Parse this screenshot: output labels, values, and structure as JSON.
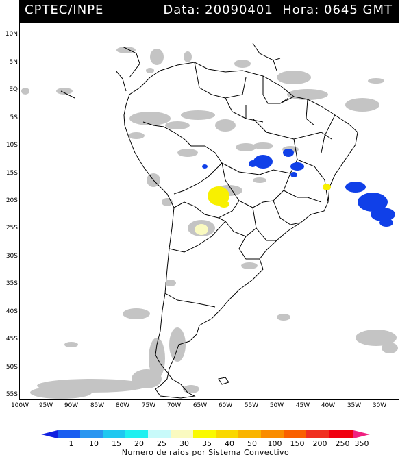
{
  "header": {
    "source": "CPTEC/INPE",
    "info": "Data: 20090401  Hora: 0645 GMT"
  },
  "map": {
    "lat_labels": [
      "10N",
      "5N",
      "EQ",
      "5S",
      "10S",
      "15S",
      "20S",
      "25S",
      "30S",
      "35S",
      "40S",
      "45S",
      "50S",
      "55S"
    ],
    "lon_labels": [
      "100W",
      "95W",
      "90W",
      "85W",
      "80W",
      "75W",
      "70W",
      "65W",
      "60W",
      "55W",
      "50W",
      "45W",
      "40W",
      "35W",
      "30W"
    ]
  },
  "colorbar": {
    "labels": [
      "1",
      "10",
      "15",
      "20",
      "25",
      "30",
      "35",
      "40",
      "50",
      "100",
      "150",
      "200",
      "250",
      "350"
    ],
    "colors": [
      "#1020e0",
      "#1a5ef0",
      "#2a96f0",
      "#20c8f0",
      "#20f0f0",
      "#c8fafa",
      "#fafac0",
      "#fafa00",
      "#fad800",
      "#fab400",
      "#fa8c00",
      "#fa6000",
      "#f03020",
      "#f00010",
      "#f02080"
    ],
    "title": "Numero de raios por Sistema Convectivo"
  },
  "legend_colors": {
    "cloud": "#c4c4c4",
    "cluster_blue": "#1040e8",
    "cluster_yellow": "#f8f000",
    "cluster_paleyellow": "#fafac0"
  }
}
